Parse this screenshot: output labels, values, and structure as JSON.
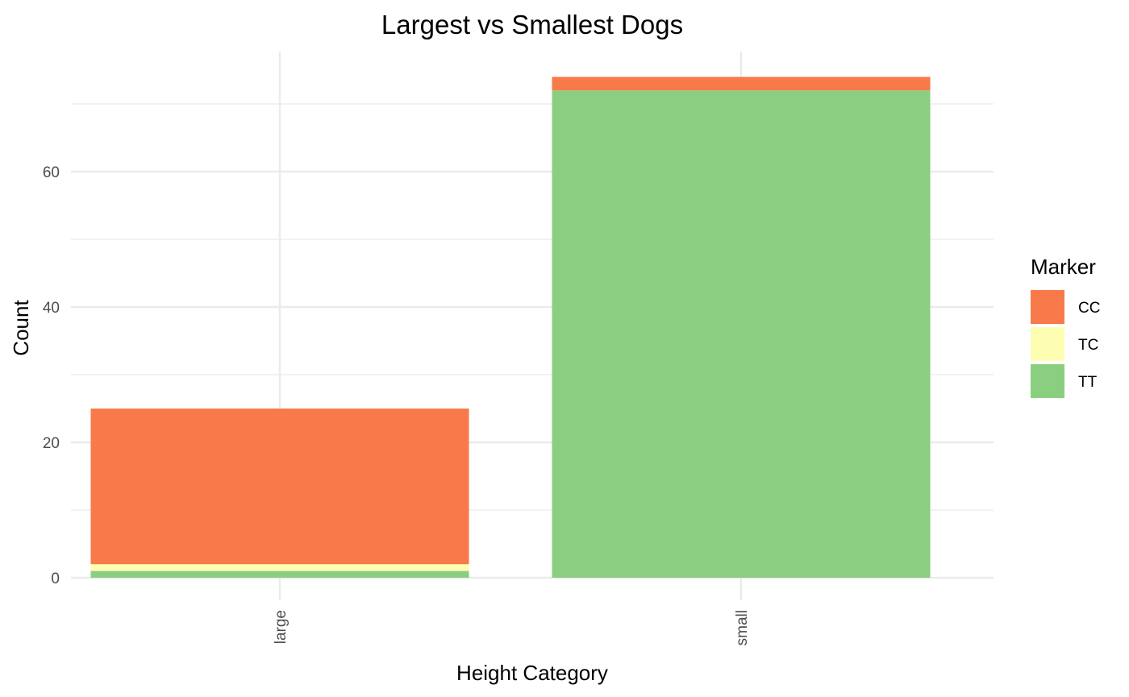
{
  "chart_data": {
    "type": "bar",
    "stacked": true,
    "title": "Largest vs Smallest Dogs",
    "xlabel": "Height Category",
    "ylabel": "Count",
    "categories": [
      "large",
      "small"
    ],
    "series": [
      {
        "name": "TT",
        "color": "#8ACF80",
        "values": [
          1,
          72
        ]
      },
      {
        "name": "TC",
        "color": "#FDFEB1",
        "values": [
          1,
          0
        ]
      },
      {
        "name": "CC",
        "color": "#F87A4A",
        "values": [
          23,
          2
        ]
      }
    ],
    "ylim": [
      0,
      77.5
    ],
    "yticks": [
      0,
      20,
      40,
      60
    ],
    "y_minor_ticks": [
      10,
      30,
      50,
      70
    ],
    "grid": true,
    "legend": {
      "title": "Marker",
      "position": "right",
      "order": [
        "CC",
        "TC",
        "TT"
      ]
    }
  }
}
